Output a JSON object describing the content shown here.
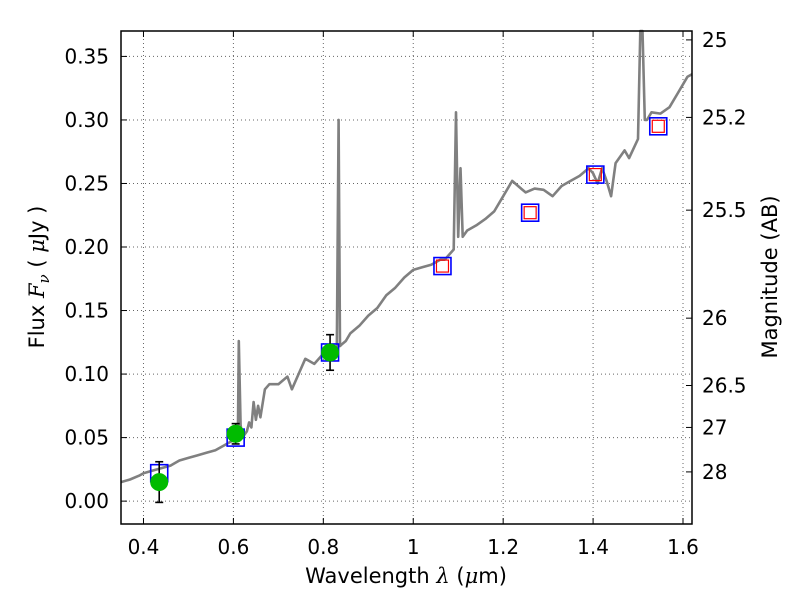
{
  "chart_data": {
    "type": "line",
    "title": "",
    "xlabel": {
      "prefix": "Wavelength",
      "symbol": "λ",
      "unit_open": "(",
      "unit_mu": "μ",
      "unit_rest": "m)"
    },
    "ylabel": {
      "prefix": "Flux",
      "symbol": "F",
      "subscript": "ν",
      "unit_open": "(",
      "unit_mu": "μ",
      "unit_rest": "Jy",
      "unit_close": ")"
    },
    "y2label": "Magnitude (AB)",
    "xlim": [
      0.35,
      1.62
    ],
    "ylim": [
      -0.018,
      0.37
    ],
    "grid": true,
    "x_ticks": [
      {
        "value": 0.4,
        "label": "0.4"
      },
      {
        "value": 0.6,
        "label": "0.6"
      },
      {
        "value": 0.8,
        "label": "0.8"
      },
      {
        "value": 1.0,
        "label": "1"
      },
      {
        "value": 1.2,
        "label": "1.2"
      },
      {
        "value": 1.4,
        "label": "1.4"
      },
      {
        "value": 1.6,
        "label": "1.6"
      }
    ],
    "y_ticks": [
      {
        "value": 0.0,
        "label": "0.00"
      },
      {
        "value": 0.05,
        "label": "0.05"
      },
      {
        "value": 0.1,
        "label": "0.10"
      },
      {
        "value": 0.15,
        "label": "0.15"
      },
      {
        "value": 0.2,
        "label": "0.20"
      },
      {
        "value": 0.25,
        "label": "0.25"
      },
      {
        "value": 0.3,
        "label": "0.30"
      },
      {
        "value": 0.35,
        "label": "0.35"
      }
    ],
    "y2_ticks": [
      {
        "flux": 0.363,
        "label": "25"
      },
      {
        "flux": 0.302,
        "label": "25.2"
      },
      {
        "flux": 0.229,
        "label": "25.5"
      },
      {
        "flux": 0.144,
        "label": "26"
      },
      {
        "flux": 0.091,
        "label": "26.5"
      },
      {
        "flux": 0.058,
        "label": "27"
      },
      {
        "flux": 0.023,
        "label": "28"
      }
    ],
    "colors": {
      "spectrum": "#808080",
      "model_box": "#0000ff",
      "inner_box": "#ff0000",
      "observed": "#00bb00",
      "error_bar": "#000000",
      "grid": "#666666"
    },
    "series": [
      {
        "name": "model spectrum",
        "kind": "line",
        "x": [
          0.35,
          0.37,
          0.39,
          0.4,
          0.42,
          0.44,
          0.46,
          0.47,
          0.48,
          0.5,
          0.52,
          0.54,
          0.56,
          0.58,
          0.6,
          0.61,
          0.612,
          0.616,
          0.618,
          0.62,
          0.63,
          0.635,
          0.64,
          0.645,
          0.65,
          0.655,
          0.66,
          0.67,
          0.68,
          0.7,
          0.72,
          0.73,
          0.75,
          0.76,
          0.78,
          0.8,
          0.82,
          0.83,
          0.834,
          0.837,
          0.84,
          0.85,
          0.86,
          0.88,
          0.9,
          0.92,
          0.94,
          0.96,
          0.98,
          1.0,
          1.02,
          1.04,
          1.06,
          1.07,
          1.09,
          1.095,
          1.1,
          1.105,
          1.11,
          1.12,
          1.14,
          1.16,
          1.18,
          1.2,
          1.22,
          1.24,
          1.25,
          1.27,
          1.29,
          1.31,
          1.33,
          1.35,
          1.37,
          1.39,
          1.4,
          1.41,
          1.42,
          1.43,
          1.44,
          1.45,
          1.47,
          1.48,
          1.5,
          1.505,
          1.51,
          1.515,
          1.52,
          1.53,
          1.55,
          1.57,
          1.59,
          1.61,
          1.62
        ],
        "y": [
          0.015,
          0.017,
          0.02,
          0.022,
          0.024,
          0.026,
          0.028,
          0.03,
          0.032,
          0.034,
          0.036,
          0.038,
          0.04,
          0.044,
          0.048,
          0.053,
          0.126,
          0.06,
          0.055,
          0.05,
          0.055,
          0.062,
          0.058,
          0.078,
          0.064,
          0.075,
          0.066,
          0.088,
          0.092,
          0.092,
          0.098,
          0.088,
          0.104,
          0.112,
          0.108,
          0.116,
          0.12,
          0.118,
          0.3,
          0.122,
          0.123,
          0.126,
          0.132,
          0.138,
          0.146,
          0.152,
          0.162,
          0.168,
          0.176,
          0.182,
          0.184,
          0.186,
          0.19,
          0.19,
          0.198,
          0.306,
          0.208,
          0.262,
          0.208,
          0.213,
          0.217,
          0.222,
          0.228,
          0.24,
          0.252,
          0.246,
          0.243,
          0.246,
          0.245,
          0.24,
          0.248,
          0.252,
          0.256,
          0.262,
          0.258,
          0.25,
          0.262,
          0.252,
          0.24,
          0.266,
          0.276,
          0.27,
          0.285,
          0.372,
          0.372,
          0.3,
          0.3,
          0.306,
          0.305,
          0.31,
          0.322,
          0.334,
          0.336
        ]
      },
      {
        "name": "model photometry",
        "kind": "square",
        "x": [
          0.435,
          0.605,
          0.815,
          1.065,
          1.26,
          1.405,
          1.545
        ],
        "y": [
          0.022,
          0.05,
          0.117,
          0.185,
          0.227,
          0.257,
          0.295
        ]
      },
      {
        "name": "inner boxes",
        "kind": "square-small",
        "x": [
          1.065,
          1.26,
          1.405,
          1.545
        ],
        "y": [
          0.185,
          0.227,
          0.257,
          0.295
        ]
      },
      {
        "name": "observed photometry",
        "kind": "circle",
        "x": [
          0.435,
          0.605,
          0.815
        ],
        "y": [
          0.015,
          0.053,
          0.117
        ],
        "err": [
          0.016,
          0.008,
          0.014
        ]
      }
    ]
  }
}
